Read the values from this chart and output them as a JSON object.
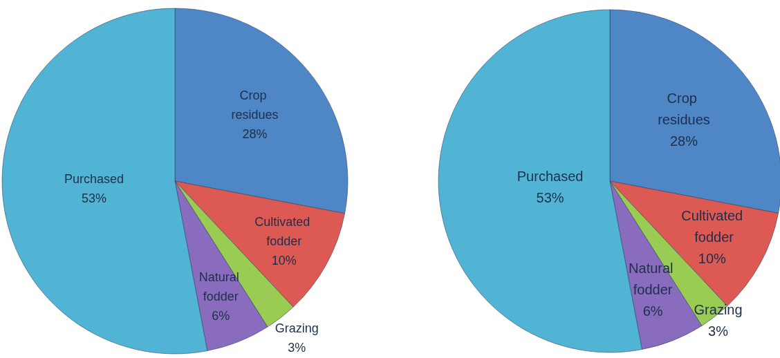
{
  "chart_data": [
    {
      "type": "pie",
      "categories": [
        "Crop residues",
        "Cultivated fodder",
        "Grazing",
        "Natural fodder",
        "Purchased"
      ],
      "values": [
        28,
        10,
        3,
        6,
        53
      ],
      "value_labels": [
        "28%",
        "10%",
        "3%",
        "6%",
        "53%"
      ],
      "colors": [
        "#4f86c6",
        "#dc5a53",
        "#9acb52",
        "#8a6cbf",
        "#52b4d4"
      ]
    },
    {
      "type": "pie",
      "categories": [
        "Crop residues",
        "Cultivated fodder",
        "Grazing",
        "Natural fodder",
        "Purchased"
      ],
      "values": [
        28,
        10,
        3,
        6,
        53
      ],
      "value_labels": [
        "28%",
        "10%",
        "3%",
        "6%",
        "53%"
      ],
      "colors": [
        "#4f86c6",
        "#dc5a53",
        "#9acb52",
        "#8a6cbf",
        "#52b4d4"
      ]
    }
  ]
}
